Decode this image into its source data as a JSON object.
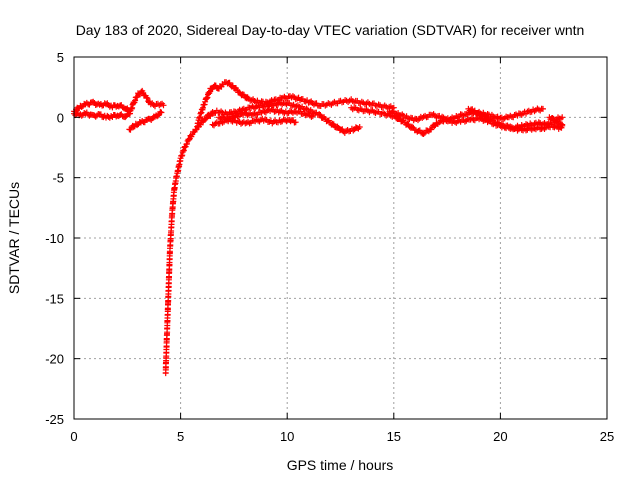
{
  "chart_data": {
    "type": "scatter",
    "title": "Day 183 of 2020, Sidereal Day-to-day VTEC variation (SDTVAR) for receiver wntn",
    "xlabel": "GPS time / hours",
    "ylabel": "SDTVAR / TECUs",
    "xlim": [
      0,
      25
    ],
    "ylim": [
      -25,
      5
    ],
    "xticks": [
      0,
      5,
      10,
      15,
      20,
      25
    ],
    "yticks": [
      -25,
      -20,
      -15,
      -10,
      -5,
      0,
      5
    ],
    "xtick_labels": [
      "0",
      "5",
      "10",
      "15",
      "20",
      "25"
    ],
    "ytick_labels": [
      "-25",
      "-20",
      "-15",
      "-10",
      "-5",
      "0",
      "5"
    ],
    "grid": true,
    "marker": "+",
    "series": [
      {
        "name": "SDTVAR",
        "color": "#ff0000",
        "segments": [
          [
            [
              0.0,
              0.5
            ],
            [
              0.3,
              0.9
            ],
            [
              0.6,
              1.1
            ],
            [
              0.9,
              1.2
            ],
            [
              1.2,
              1.0
            ],
            [
              1.5,
              1.1
            ],
            [
              1.8,
              0.9
            ],
            [
              2.1,
              1.0
            ],
            [
              2.4,
              0.8
            ],
            [
              2.6,
              0.5
            ]
          ],
          [
            [
              0.0,
              0.3
            ],
            [
              0.3,
              0.2
            ],
            [
              0.6,
              0.3
            ],
            [
              0.9,
              0.1
            ],
            [
              1.2,
              0.2
            ],
            [
              1.5,
              0.0
            ],
            [
              1.8,
              0.1
            ],
            [
              2.1,
              0.2
            ],
            [
              2.4,
              0.1
            ],
            [
              2.6,
              0.3
            ]
          ],
          [
            [
              2.6,
              0.3
            ],
            [
              2.8,
              1.2
            ],
            [
              3.0,
              1.9
            ],
            [
              3.2,
              2.1
            ],
            [
              3.4,
              1.6
            ],
            [
              3.6,
              1.1
            ],
            [
              3.8,
              1.0
            ],
            [
              4.0,
              1.1
            ],
            [
              4.2,
              1.0
            ]
          ],
          [
            [
              2.6,
              -1.0
            ],
            [
              2.9,
              -0.6
            ],
            [
              3.2,
              -0.4
            ],
            [
              3.5,
              -0.2
            ],
            [
              3.8,
              0.0
            ],
            [
              4.0,
              0.3
            ],
            [
              4.1,
              0.4
            ]
          ],
          [
            [
              4.3,
              -21.2
            ],
            [
              4.32,
              -20.0
            ],
            [
              4.35,
              -18.5
            ],
            [
              4.38,
              -17.0
            ],
            [
              4.41,
              -15.5
            ],
            [
              4.44,
              -14.0
            ],
            [
              4.47,
              -12.5
            ],
            [
              4.5,
              -11.0
            ],
            [
              4.55,
              -9.5
            ],
            [
              4.6,
              -8.0
            ],
            [
              4.65,
              -7.0
            ],
            [
              4.7,
              -6.0
            ],
            [
              4.8,
              -5.0
            ],
            [
              4.9,
              -4.2
            ],
            [
              5.0,
              -3.4
            ],
            [
              5.15,
              -2.7
            ],
            [
              5.3,
              -2.1
            ],
            [
              5.5,
              -1.5
            ],
            [
              5.7,
              -1.0
            ],
            [
              5.9,
              -0.6
            ],
            [
              6.1,
              -0.2
            ],
            [
              6.3,
              0.1
            ],
            [
              6.5,
              0.3
            ]
          ],
          [
            [
              5.8,
              -0.5
            ],
            [
              6.0,
              0.6
            ],
            [
              6.2,
              1.5
            ],
            [
              6.4,
              2.3
            ],
            [
              6.6,
              2.6
            ],
            [
              6.8,
              2.4
            ],
            [
              7.0,
              2.8
            ],
            [
              7.2,
              2.9
            ],
            [
              7.5,
              2.5
            ],
            [
              7.8,
              2.0
            ],
            [
              8.2,
              1.5
            ],
            [
              8.6,
              1.3
            ],
            [
              9.0,
              1.2
            ],
            [
              9.4,
              1.4
            ],
            [
              9.8,
              1.6
            ],
            [
              10.2,
              1.7
            ],
            [
              10.6,
              1.5
            ],
            [
              11.0,
              1.3
            ],
            [
              11.5,
              1.0
            ],
            [
              12.0,
              1.1
            ],
            [
              12.5,
              1.3
            ],
            [
              13.0,
              1.4
            ],
            [
              13.5,
              1.2
            ],
            [
              14.0,
              1.1
            ],
            [
              14.5,
              0.9
            ],
            [
              15.0,
              0.8
            ]
          ],
          [
            [
              6.3,
              0.2
            ],
            [
              6.7,
              0.5
            ],
            [
              7.1,
              0.3
            ],
            [
              7.5,
              0.4
            ],
            [
              7.9,
              0.6
            ],
            [
              8.3,
              0.8
            ],
            [
              8.7,
              0.9
            ],
            [
              9.1,
              1.0
            ],
            [
              9.5,
              1.1
            ],
            [
              9.9,
              1.2
            ],
            [
              10.3,
              1.0
            ],
            [
              10.7,
              0.8
            ],
            [
              11.1,
              0.5
            ],
            [
              11.5,
              0.2
            ],
            [
              11.9,
              -0.3
            ],
            [
              12.3,
              -0.8
            ],
            [
              12.7,
              -1.2
            ],
            [
              13.1,
              -1.0
            ],
            [
              13.4,
              -0.8
            ]
          ],
          [
            [
              6.5,
              -0.6
            ],
            [
              6.9,
              -0.4
            ],
            [
              7.3,
              -0.2
            ],
            [
              7.7,
              -0.4
            ],
            [
              8.1,
              -0.5
            ],
            [
              8.5,
              -0.3
            ],
            [
              8.9,
              -0.2
            ],
            [
              9.3,
              -0.4
            ],
            [
              9.7,
              -0.3
            ],
            [
              10.1,
              -0.2
            ],
            [
              10.4,
              -0.4
            ]
          ],
          [
            [
              6.8,
              0.0
            ],
            [
              7.2,
              -0.1
            ],
            [
              7.6,
              0.1
            ],
            [
              8.0,
              0.3
            ],
            [
              8.4,
              0.2
            ],
            [
              8.8,
              0.4
            ],
            [
              9.2,
              0.6
            ],
            [
              9.6,
              0.5
            ],
            [
              10.0,
              0.4
            ],
            [
              10.4,
              0.5
            ],
            [
              10.8,
              0.3
            ],
            [
              11.2,
              0.1
            ]
          ],
          [
            [
              13.0,
              0.8
            ],
            [
              13.5,
              0.6
            ],
            [
              14.0,
              0.5
            ],
            [
              14.5,
              0.3
            ],
            [
              15.0,
              0.1
            ],
            [
              15.4,
              -0.3
            ],
            [
              15.8,
              -0.8
            ],
            [
              16.1,
              -1.1
            ],
            [
              16.4,
              -1.3
            ],
            [
              16.7,
              -1.0
            ],
            [
              17.0,
              -0.5
            ],
            [
              17.4,
              -0.2
            ],
            [
              17.8,
              -0.4
            ],
            [
              18.2,
              -0.3
            ],
            [
              18.6,
              -0.2
            ],
            [
              19.0,
              -0.1
            ],
            [
              19.4,
              -0.3
            ],
            [
              19.8,
              -0.6
            ],
            [
              20.2,
              -0.8
            ],
            [
              20.6,
              -0.9
            ],
            [
              21.0,
              -0.7
            ],
            [
              21.4,
              -0.6
            ],
            [
              21.8,
              -0.5
            ],
            [
              22.2,
              -0.6
            ],
            [
              22.6,
              -0.4
            ],
            [
              22.9,
              -0.6
            ]
          ],
          [
            [
              14.8,
              0.5
            ],
            [
              15.2,
              0.3
            ],
            [
              15.6,
              0.0
            ],
            [
              16.0,
              -0.2
            ],
            [
              16.4,
              0.0
            ],
            [
              16.8,
              0.2
            ],
            [
              17.2,
              0.0
            ],
            [
              17.6,
              -0.2
            ],
            [
              18.0,
              0.1
            ],
            [
              18.4,
              0.3
            ],
            [
              18.8,
              0.4
            ],
            [
              19.2,
              0.3
            ],
            [
              19.6,
              0.1
            ],
            [
              20.0,
              -0.1
            ],
            [
              20.4,
              0.0
            ],
            [
              20.8,
              0.2
            ],
            [
              21.2,
              0.4
            ],
            [
              21.6,
              0.6
            ],
            [
              22.0,
              0.7
            ]
          ],
          [
            [
              18.5,
              0.7
            ],
            [
              18.8,
              0.5
            ],
            [
              19.0,
              0.2
            ],
            [
              19.3,
              0.0
            ],
            [
              19.6,
              -0.3
            ],
            [
              20.0,
              -0.6
            ],
            [
              20.4,
              -0.8
            ],
            [
              20.8,
              -1.0
            ],
            [
              21.2,
              -1.0
            ],
            [
              21.6,
              -0.9
            ],
            [
              22.0,
              -0.9
            ],
            [
              22.4,
              -0.7
            ],
            [
              22.8,
              -0.9
            ],
            [
              22.9,
              -0.7
            ]
          ],
          [
            [
              22.3,
              0.0
            ],
            [
              22.5,
              -0.2
            ],
            [
              22.7,
              -0.1
            ],
            [
              22.9,
              0.0
            ]
          ]
        ]
      }
    ]
  }
}
